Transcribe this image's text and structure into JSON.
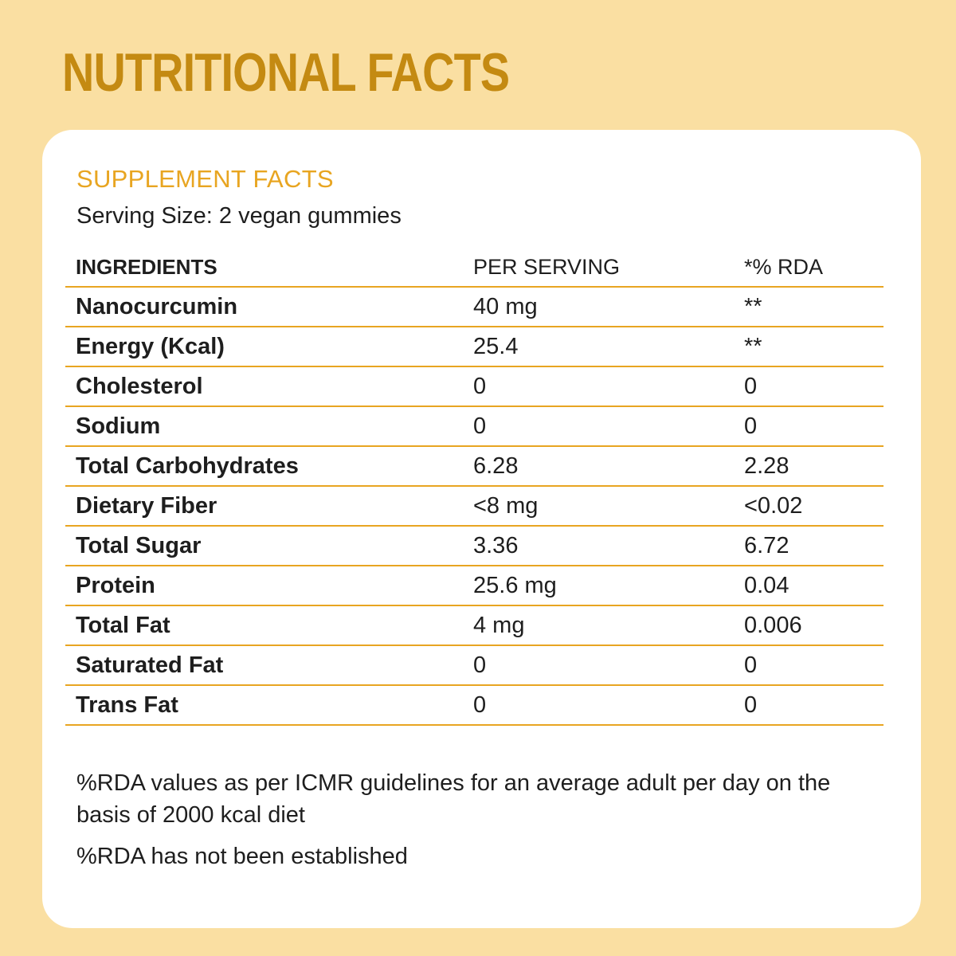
{
  "title": "NUTRITIONAL FACTS",
  "card": {
    "heading": "SUPPLEMENT FACTS",
    "serving_size": "Serving Size: 2 vegan gummies"
  },
  "table": {
    "columns": [
      "INGREDIENTS",
      "PER SERVING",
      "*% RDA"
    ],
    "rows": [
      {
        "name": "Nanocurcumin",
        "per_serving": "40 mg",
        "rda": "**"
      },
      {
        "name": "Energy (Kcal)",
        "per_serving": "25.4",
        "rda": "**"
      },
      {
        "name": "Cholesterol",
        "per_serving": "0",
        "rda": "0"
      },
      {
        "name": "Sodium",
        "per_serving": "0",
        "rda": "0"
      },
      {
        "name": "Total Carbohydrates",
        "per_serving": "6.28",
        "rda": "2.28"
      },
      {
        "name": "Dietary Fiber",
        "per_serving": "<8 mg",
        "rda": "<0.02"
      },
      {
        "name": "Total Sugar",
        "per_serving": "3.36",
        "rda": "6.72"
      },
      {
        "name": "Protein",
        "per_serving": "25.6 mg",
        "rda": "0.04"
      },
      {
        "name": "Total Fat",
        "per_serving": "4 mg",
        "rda": "0.006"
      },
      {
        "name": "Saturated Fat",
        "per_serving": "0",
        "rda": "0"
      },
      {
        "name": "Trans Fat",
        "per_serving": "0",
        "rda": "0"
      }
    ]
  },
  "notes": [
    "%RDA values as per ICMR guidelines for an average adult per day on the basis of 2000 kcal diet",
    "%RDA has not been established"
  ],
  "colors": {
    "background": "#FADFA2",
    "title": "#C48A12",
    "accent": "#E8A521",
    "card": "#FFFFFF",
    "text": "#1E1E1E"
  }
}
